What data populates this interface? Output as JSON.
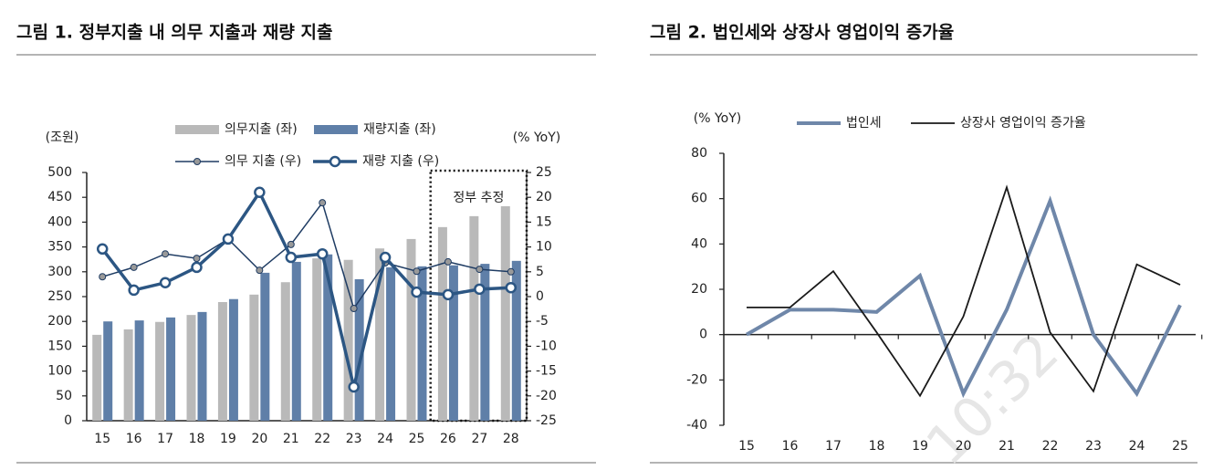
{
  "chart_data": [
    {
      "type": "bar",
      "title": "그림 1. 정부지출 내 의무 지출과 재량 지출",
      "y_label": "(조원)",
      "y2_label": "(% YoY)",
      "annotation": "정부 추정",
      "categories": [
        "15",
        "16",
        "17",
        "18",
        "19",
        "20",
        "21",
        "22",
        "23",
        "24",
        "25",
        "26",
        "27",
        "28"
      ],
      "series": [
        {
          "name": "의무지출 (좌)",
          "type": "bar",
          "color": "#b9b9b9",
          "values": [
            173,
            184,
            199,
            213,
            239,
            254,
            279,
            327,
            324,
            347,
            366,
            390,
            412,
            432
          ]
        },
        {
          "name": "재량지출 (좌)",
          "type": "bar",
          "color": "#5f7fa8",
          "values": [
            200,
            202,
            208,
            219,
            245,
            298,
            320,
            335,
            285,
            309,
            311,
            313,
            316,
            322
          ]
        },
        {
          "name": "의무 지출 (우)",
          "type": "line",
          "axis": "y2",
          "color": "#1f3c63",
          "values": [
            4.0,
            5.9,
            8.6,
            7.7,
            11.6,
            5.3,
            10.5,
            18.9,
            -2.4,
            6.8,
            5.1,
            7.0,
            5.5,
            5.0
          ]
        },
        {
          "name": "재량 지출 (우)",
          "type": "line",
          "axis": "y2",
          "color": "#2c5683",
          "values": [
            9.6,
            1.3,
            2.8,
            5.9,
            11.6,
            21.0,
            7.9,
            8.6,
            -18.2,
            7.9,
            0.9,
            0.4,
            1.5,
            1.8
          ]
        }
      ],
      "ylim": [
        0,
        500
      ],
      "yticks": [
        0,
        50,
        100,
        150,
        200,
        250,
        300,
        350,
        400,
        450,
        500
      ],
      "y2lim": [
        -25,
        25
      ],
      "y2ticks": [
        -25,
        -20,
        -15,
        -10,
        -5,
        0,
        5,
        10,
        15,
        20,
        25
      ]
    },
    {
      "type": "line",
      "title": "그림 2. 법인세와 상장사 영업이익 증가율",
      "y_label": "(% YoY)",
      "categories": [
        "15",
        "16",
        "17",
        "18",
        "19",
        "20",
        "21",
        "22",
        "23",
        "24",
        "25"
      ],
      "series": [
        {
          "name": "법인세",
          "color": "#6f87a9",
          "values": [
            0,
            11,
            11,
            10,
            26,
            -26,
            11,
            59,
            0,
            -26,
            13
          ]
        },
        {
          "name": "상장사 영업이익 증가율",
          "color": "#1a1a1a",
          "values": [
            12,
            12,
            28,
            1,
            -27,
            8,
            65,
            1,
            -25,
            31,
            22
          ]
        }
      ],
      "ylim": [
        -40,
        80
      ],
      "yticks": [
        -40,
        -20,
        0,
        20,
        40,
        60,
        80
      ]
    }
  ],
  "watermark": "10:32"
}
